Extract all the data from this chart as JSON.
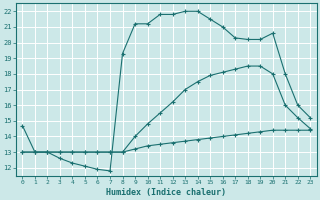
{
  "xlabel": "Humidex (Indice chaleur)",
  "xlim": [
    -0.5,
    23.5
  ],
  "ylim": [
    11.5,
    22.5
  ],
  "xticks": [
    0,
    1,
    2,
    3,
    4,
    5,
    6,
    7,
    8,
    9,
    10,
    11,
    12,
    13,
    14,
    15,
    16,
    17,
    18,
    19,
    20,
    21,
    22,
    23
  ],
  "yticks": [
    12,
    13,
    14,
    15,
    16,
    17,
    18,
    19,
    20,
    21,
    22
  ],
  "bg_color": "#cce8e8",
  "grid_color": "#ffffff",
  "line_color": "#1a7070",
  "series1": {
    "x": [
      0,
      1,
      2,
      3,
      4,
      5,
      6,
      7,
      8,
      9,
      10,
      11,
      12,
      13,
      14,
      15,
      16,
      17,
      18,
      19,
      20,
      21,
      22,
      23
    ],
    "y": [
      14.7,
      13.0,
      13.0,
      12.6,
      12.3,
      12.1,
      11.9,
      11.8,
      19.3,
      21.2,
      21.2,
      21.8,
      21.8,
      22.0,
      22.0,
      21.5,
      21.0,
      20.3,
      20.2,
      20.2,
      20.6,
      18.0,
      16.0,
      15.2
    ]
  },
  "series2": {
    "x": [
      0,
      1,
      2,
      3,
      4,
      5,
      6,
      7,
      8,
      9,
      10,
      11,
      12,
      13,
      14,
      15,
      16,
      17,
      18,
      19,
      20,
      21,
      22,
      23
    ],
    "y": [
      13.0,
      13.0,
      13.0,
      13.0,
      13.0,
      13.0,
      13.0,
      13.0,
      13.0,
      14.0,
      14.8,
      15.5,
      16.2,
      17.0,
      17.5,
      17.9,
      18.1,
      18.3,
      18.5,
      18.5,
      18.0,
      16.0,
      15.2,
      14.5
    ]
  },
  "series3": {
    "x": [
      0,
      1,
      2,
      3,
      4,
      5,
      6,
      7,
      8,
      9,
      10,
      11,
      12,
      13,
      14,
      15,
      16,
      17,
      18,
      19,
      20,
      21,
      22,
      23
    ],
    "y": [
      13.0,
      13.0,
      13.0,
      13.0,
      13.0,
      13.0,
      13.0,
      13.0,
      13.0,
      13.2,
      13.4,
      13.5,
      13.6,
      13.7,
      13.8,
      13.9,
      14.0,
      14.1,
      14.2,
      14.3,
      14.4,
      14.4,
      14.4,
      14.4
    ]
  }
}
